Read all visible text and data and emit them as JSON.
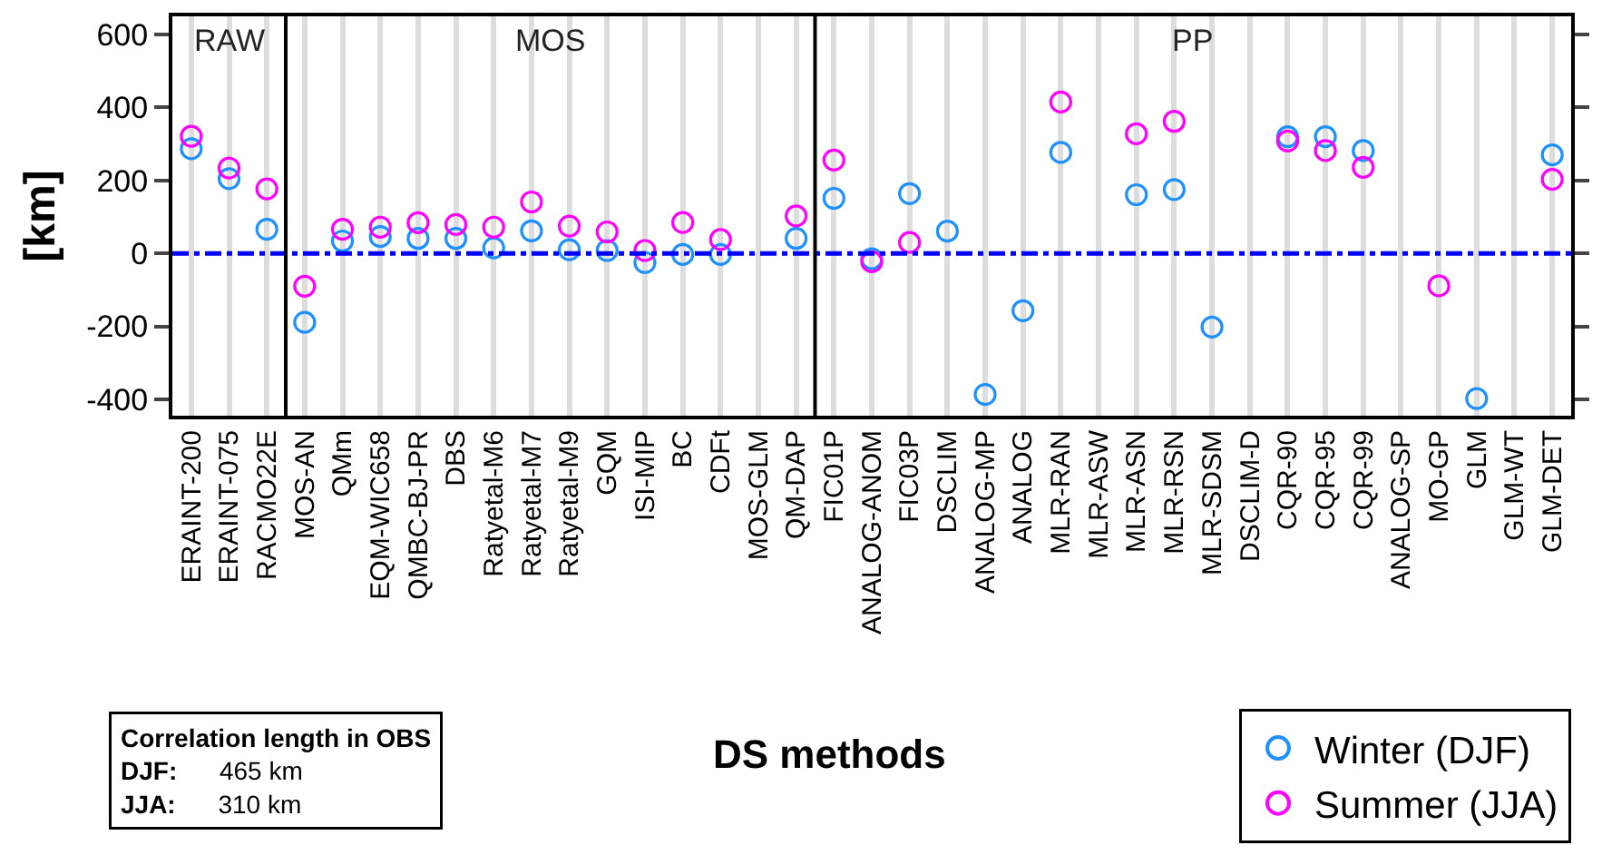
{
  "chart_data": {
    "type": "scatter",
    "ylabel": "[km]",
    "xlabel": "DS methods",
    "categories": [
      "ERAINT-200",
      "ERAINT-075",
      "RACMO22E",
      "MOS-AN",
      "QMm",
      "EQM-WIC658",
      "QMBC-BJ-PR",
      "DBS",
      "Ratyetal-M6",
      "Ratyetal-M7",
      "Ratyetal-M9",
      "GQM",
      "ISI-MIP",
      "BC",
      "CDFt",
      "MOS-GLM",
      "QM-DAP",
      "FIC01P",
      "ANALOG-ANOM",
      "FIC03P",
      "DSCLIM",
      "ANALOG-MP",
      "ANALOG",
      "MLR-RAN",
      "MLR-ASW",
      "MLR-ASN",
      "MLR-RSN",
      "MLR-SDSM",
      "DSCLIM-D",
      "CQR-90",
      "CQR-95",
      "CQR-99",
      "ANALOG-SP",
      "MO-GP",
      "GLM",
      "GLM-WT",
      "GLM-DET"
    ],
    "series": [
      {
        "name": "Winter (DJF)",
        "color": "#1e90ff",
        "values": [
          287,
          205,
          66,
          -189,
          34,
          46,
          41,
          41,
          15,
          62,
          10,
          8,
          -25,
          -3,
          -3,
          null,
          41,
          151,
          -15,
          164,
          61,
          -387,
          -157,
          277,
          null,
          161,
          175,
          -202,
          null,
          320,
          320,
          282,
          null,
          null,
          -398,
          null,
          270
        ]
      },
      {
        "name": "Summer (JJA)",
        "color": "#ff00ff",
        "values": [
          321,
          234,
          177,
          -90,
          66,
          72,
          84,
          79,
          72,
          141,
          75,
          59,
          8,
          85,
          38,
          null,
          103,
          256,
          -23,
          30,
          null,
          null,
          null,
          415,
          null,
          328,
          362,
          null,
          null,
          308,
          282,
          236,
          null,
          -89,
          null,
          null,
          203
        ]
      }
    ],
    "ylim": [
      -445,
      650
    ],
    "yticks": [
      -400,
      -200,
      0,
      200,
      400,
      600
    ],
    "grid": "x",
    "marker": "circle",
    "legend": "bottom right",
    "ref_lines": [
      {
        "axis": "y",
        "value": 0,
        "color": "#0000ff",
        "line_style": "dashed"
      }
    ],
    "annotations": [
      "RAW",
      "MOS",
      "PP",
      "Correlation length in OBS",
      "DJF:",
      "465 km",
      "JJA:",
      "310 km"
    ]
  }
}
